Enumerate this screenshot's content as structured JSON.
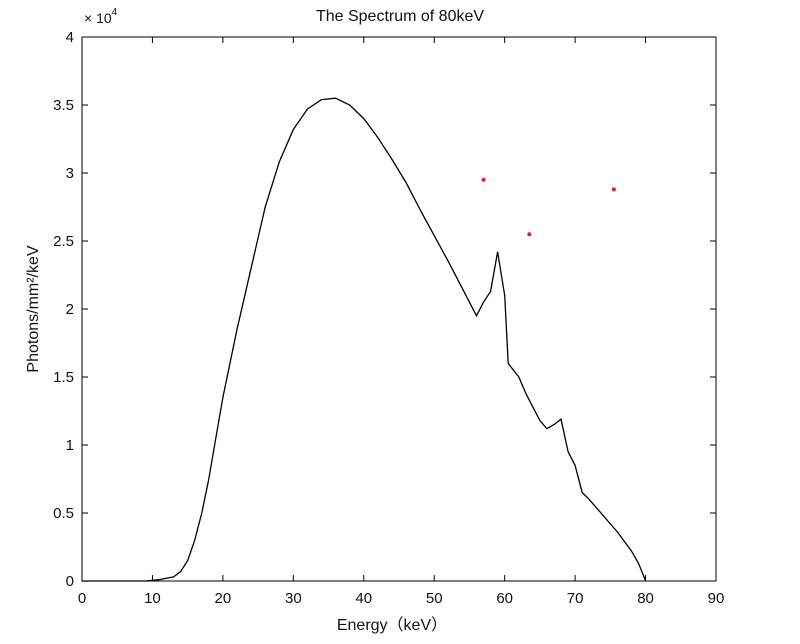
{
  "chart_data": {
    "type": "line",
    "title": "The Spectrum of 80keV",
    "xlabel": "Energy（keV）",
    "ylabel": "Photons/mm²/keV",
    "xlim": [
      0,
      90
    ],
    "ylim": [
      0,
      40000
    ],
    "x_ticks": [
      0,
      10,
      20,
      30,
      40,
      50,
      60,
      70,
      80,
      90
    ],
    "y_ticks": [
      0,
      5000,
      10000,
      15000,
      20000,
      25000,
      30000,
      35000,
      40000
    ],
    "x_tick_labels": [
      "0",
      "10",
      "20",
      "30",
      "40",
      "50",
      "60",
      "70",
      "80",
      "90"
    ],
    "y_tick_labels": [
      "0",
      "0.5",
      "1",
      "1.5",
      "2",
      "2.5",
      "3",
      "3.5",
      "4"
    ],
    "y_multiplier_label": "× 10",
    "y_multiplier_exponent": "4",
    "grid": false,
    "series": [
      {
        "color": "#000000",
        "points": [
          [
            0,
            0
          ],
          [
            9,
            0
          ],
          [
            11,
            100
          ],
          [
            13,
            300
          ],
          [
            14,
            700
          ],
          [
            15,
            1500
          ],
          [
            16,
            3000
          ],
          [
            17,
            5000
          ],
          [
            18,
            7500
          ],
          [
            19,
            10500
          ],
          [
            20,
            13500
          ],
          [
            22,
            18500
          ],
          [
            24,
            23000
          ],
          [
            26,
            27500
          ],
          [
            28,
            30800
          ],
          [
            30,
            33200
          ],
          [
            32,
            34700
          ],
          [
            34,
            35400
          ],
          [
            36,
            35500
          ],
          [
            38,
            35000
          ],
          [
            40,
            34000
          ],
          [
            42,
            32600
          ],
          [
            44,
            31000
          ],
          [
            46,
            29300
          ],
          [
            48,
            27300
          ],
          [
            50,
            25400
          ],
          [
            52,
            23500
          ],
          [
            54,
            21500
          ],
          [
            56,
            19500
          ],
          [
            57,
            20500
          ],
          [
            58,
            21300
          ],
          [
            59,
            24200
          ],
          [
            60,
            21000
          ],
          [
            60.5,
            16000
          ],
          [
            62,
            15000
          ],
          [
            63,
            13800
          ],
          [
            64,
            12800
          ],
          [
            65,
            11800
          ],
          [
            66,
            11200
          ],
          [
            67,
            11500
          ],
          [
            68,
            11900
          ],
          [
            69,
            9500
          ],
          [
            70,
            8500
          ],
          [
            71,
            6500
          ],
          [
            72,
            6000
          ],
          [
            74,
            4800
          ],
          [
            76,
            3600
          ],
          [
            78,
            2200
          ],
          [
            79,
            1300
          ],
          [
            80,
            0
          ]
        ]
      }
    ],
    "markers": [
      {
        "x": 57,
        "y": 29500,
        "color": "#e02020"
      },
      {
        "x": 63.5,
        "y": 25500,
        "color": "#e02020"
      },
      {
        "x": 75.5,
        "y": 28800,
        "color": "#e02020"
      }
    ]
  }
}
